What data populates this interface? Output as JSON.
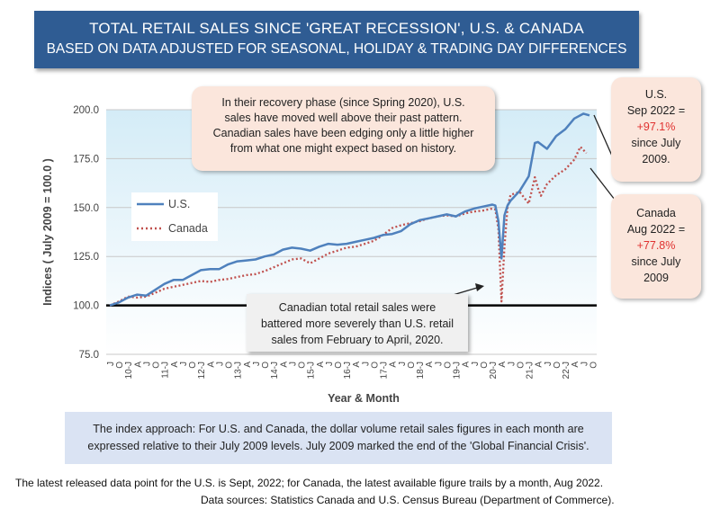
{
  "title_line1": "TOTAL RETAIL SALES SINCE 'GREAT RECESSION', U.S. & CANADA",
  "title_line2": "BASED ON DATA ADJUSTED FOR SEASONAL, HOLIDAY & TRADING DAY DIFFERENCES",
  "callout_top": {
    "lines": [
      "In their recovery phase (since Spring 2020), U.S.",
      "sales have moved well above their past pattern.",
      "Canadian sales have been edging only a little higher",
      "from what one might expect based on history."
    ]
  },
  "callout_us": {
    "l1": "U.S.",
    "l2": "Sep 2022 =",
    "l3": "+97.1%",
    "l4": "since July",
    "l5": "2009."
  },
  "callout_ca": {
    "l1": "Canada",
    "l2": "Aug 2022 =",
    "l3": "+77.8%",
    "l4": "since July",
    "l5": "2009"
  },
  "caption_mid": {
    "lines": [
      "Canadian total retail sales were",
      "battered more severely than U.S. retail",
      "sales from February to April, 2020."
    ]
  },
  "note": {
    "l1": "The index approach: For U.S. and Canada, the dollar volume retail sales figures in each month are",
    "l2": "expressed relative to their July 2009 levels. July 2009 marked the end of the 'Global Financial Crisis'."
  },
  "footer": {
    "l1": "The latest released data point for the U.S. is Sept, 2022; for Canada, the latest available figure trails by a month, Aug 2022.",
    "l2": "Data sources: Statistics Canada and U.S. Census Bureau (Department of Commerce)."
  },
  "colors": {
    "us": "#4f81bd",
    "canada": "#c0504d",
    "banner": "#2f5c93",
    "plot_bg_top": "#d4ecf7"
  },
  "chart_data": {
    "type": "line",
    "xlabel": "Year & Month",
    "ylabel": "Indices ( July 2009 = 100.0 )",
    "ylim": [
      75,
      200
    ],
    "yticks": [
      "75.0",
      "100.0",
      "125.0",
      "150.0",
      "175.0",
      "200.0"
    ],
    "grid": true,
    "legend_position": "upper-left",
    "x_start": "2009-07",
    "x_end": "2022-09",
    "x_tick_labels": [
      "J",
      "O",
      "10-J",
      "A",
      "J",
      "O",
      "11-J",
      "A",
      "J",
      "O",
      "12-J",
      "A",
      "J",
      "O",
      "13-J",
      "A",
      "J",
      "O",
      "14-J",
      "A",
      "J",
      "O",
      "15-J",
      "A",
      "J",
      "O",
      "16-J",
      "A",
      "J",
      "O",
      "17-J",
      "A",
      "J",
      "O",
      "18-J",
      "A",
      "J",
      "O",
      "19-J",
      "A",
      "J",
      "O",
      "20-J",
      "A",
      "J",
      "O",
      "21-J",
      "A",
      "J",
      "O",
      "22-J",
      "A",
      "J",
      "O"
    ],
    "series": [
      {
        "name": "U.S.",
        "style": "solid",
        "x": [
          "2009-07",
          "2009-10",
          "2010-01",
          "2010-04",
          "2010-07",
          "2010-10",
          "2011-01",
          "2011-04",
          "2011-07",
          "2011-10",
          "2012-01",
          "2012-04",
          "2012-07",
          "2012-10",
          "2013-01",
          "2013-04",
          "2013-07",
          "2013-10",
          "2014-01",
          "2014-04",
          "2014-07",
          "2014-10",
          "2015-01",
          "2015-04",
          "2015-07",
          "2015-10",
          "2016-01",
          "2016-04",
          "2016-07",
          "2016-10",
          "2017-01",
          "2017-04",
          "2017-07",
          "2017-10",
          "2018-01",
          "2018-04",
          "2018-07",
          "2018-10",
          "2019-01",
          "2019-04",
          "2019-07",
          "2019-10",
          "2020-01",
          "2020-02",
          "2020-03",
          "2020-04",
          "2020-05",
          "2020-06",
          "2020-07",
          "2020-10",
          "2021-01",
          "2021-03",
          "2021-04",
          "2021-07",
          "2021-10",
          "2022-01",
          "2022-04",
          "2022-07",
          "2022-09"
        ],
        "values": [
          100.0,
          101.5,
          104.0,
          105.5,
          105.0,
          108.0,
          111.0,
          113.0,
          113.0,
          115.5,
          118.0,
          118.5,
          118.5,
          121.0,
          122.5,
          123.0,
          123.5,
          125.0,
          126.0,
          128.5,
          129.5,
          129.0,
          128.0,
          130.0,
          131.5,
          131.0,
          131.5,
          132.5,
          133.5,
          134.5,
          136.0,
          136.5,
          138.0,
          141.5,
          143.5,
          144.5,
          145.5,
          146.5,
          145.5,
          148.0,
          149.5,
          150.5,
          151.5,
          151.0,
          143.0,
          124.0,
          146.0,
          151.0,
          153.5,
          158.5,
          166.0,
          183.0,
          183.5,
          180.0,
          186.5,
          190.0,
          195.5,
          198.0,
          197.1
        ]
      },
      {
        "name": "Canada",
        "style": "dotted",
        "x": [
          "2009-07",
          "2009-10",
          "2010-01",
          "2010-04",
          "2010-07",
          "2010-10",
          "2011-01",
          "2011-04",
          "2011-07",
          "2011-10",
          "2012-01",
          "2012-04",
          "2012-07",
          "2012-10",
          "2013-01",
          "2013-04",
          "2013-07",
          "2013-10",
          "2014-01",
          "2014-04",
          "2014-07",
          "2014-10",
          "2015-01",
          "2015-04",
          "2015-07",
          "2015-10",
          "2016-01",
          "2016-04",
          "2016-07",
          "2016-10",
          "2017-01",
          "2017-04",
          "2017-07",
          "2017-10",
          "2018-01",
          "2018-04",
          "2018-07",
          "2018-10",
          "2019-01",
          "2019-04",
          "2019-07",
          "2019-10",
          "2020-01",
          "2020-02",
          "2020-03",
          "2020-04",
          "2020-05",
          "2020-06",
          "2020-07",
          "2020-10",
          "2021-01",
          "2021-03",
          "2021-04",
          "2021-05",
          "2021-07",
          "2021-10",
          "2022-01",
          "2022-04",
          "2022-06",
          "2022-08"
        ],
        "values": [
          100.0,
          102.0,
          104.5,
          104.0,
          104.5,
          106.5,
          108.5,
          109.5,
          110.5,
          111.5,
          112.5,
          112.0,
          113.0,
          113.5,
          114.5,
          115.5,
          116.0,
          117.5,
          119.5,
          121.5,
          123.5,
          124.0,
          121.5,
          124.0,
          126.5,
          128.0,
          129.5,
          130.0,
          131.5,
          133.0,
          136.0,
          139.5,
          141.0,
          142.0,
          143.0,
          144.5,
          145.5,
          146.0,
          145.5,
          147.0,
          148.0,
          148.5,
          149.5,
          149.0,
          139.0,
          102.0,
          130.0,
          150.0,
          156.5,
          158.0,
          152.0,
          165.5,
          160.0,
          156.0,
          162.0,
          166.5,
          169.5,
          174.5,
          181.0,
          177.8
        ]
      }
    ]
  }
}
